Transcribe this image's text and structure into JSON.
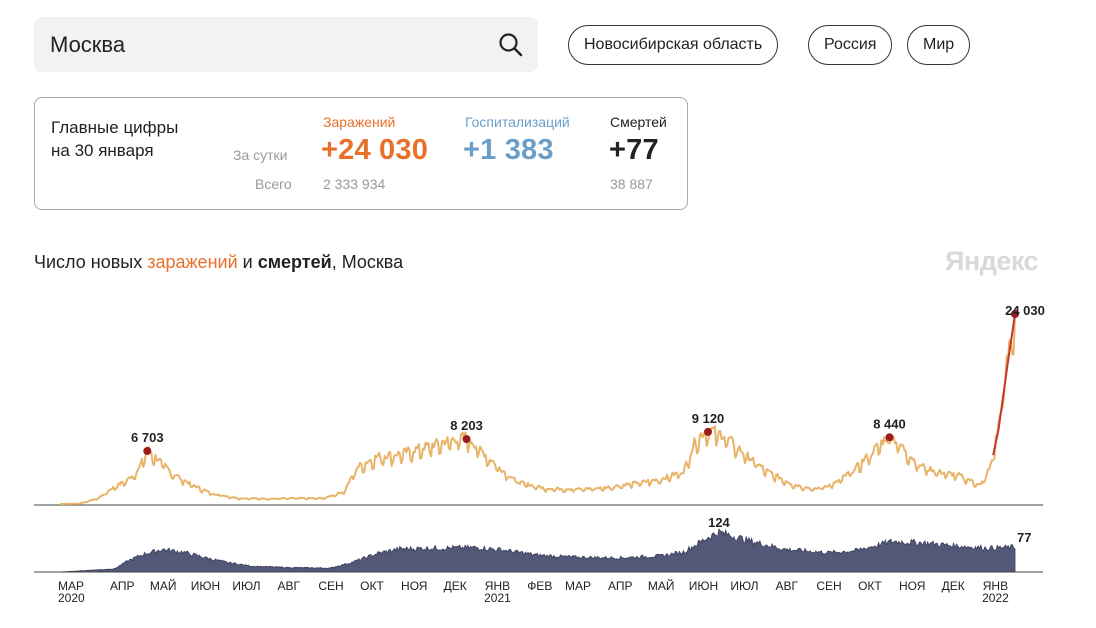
{
  "search": {
    "value": "Москва"
  },
  "regions": [
    "Новосибирская область",
    "Россия",
    "Мир"
  ],
  "card": {
    "title_line1": "Главные цифры",
    "title_line2": "на 30 января",
    "row_day": "За сутки",
    "row_total": "Всего",
    "infections": {
      "label": "Заражений",
      "day": "+24 030",
      "total": "2 333 934",
      "color": "#e8702a"
    },
    "hospitalizations": {
      "label": "Госпитализаций",
      "day": "+1 383",
      "color": "#6b9ec7"
    },
    "deaths": {
      "label": "Смертей",
      "day": "+77",
      "total": "38 887",
      "color": "#222222"
    }
  },
  "chart_title": {
    "prefix": "Число новых ",
    "infections": "заражений",
    "middle": " и ",
    "deaths": "смертей",
    "suffix": ", Москва"
  },
  "brand": "Яндекс",
  "chart_data": [
    {
      "type": "area",
      "series": [
        {
          "name": "заражений",
          "color": "#e8b46a",
          "points": [
            [
              "2020-03-01",
              0
            ],
            [
              "2020-03-15",
              30
            ],
            [
              "2020-03-29",
              700
            ],
            [
              "2020-04-08",
              1900
            ],
            [
              "2020-04-20",
              3000
            ],
            [
              "2020-04-28",
              4300
            ],
            [
              "2020-05-04",
              6703
            ],
            [
              "2020-05-12",
              5400
            ],
            [
              "2020-05-22",
              3800
            ],
            [
              "2020-06-05",
              2400
            ],
            [
              "2020-06-20",
              1300
            ],
            [
              "2020-07-10",
              700
            ],
            [
              "2020-08-01",
              650
            ],
            [
              "2020-08-20",
              700
            ],
            [
              "2020-09-10",
              700
            ],
            [
              "2020-09-25",
              1500
            ],
            [
              "2020-10-05",
              4500
            ],
            [
              "2020-10-20",
              5800
            ],
            [
              "2020-11-05",
              6100
            ],
            [
              "2020-11-25",
              7000
            ],
            [
              "2020-12-08",
              7600
            ],
            [
              "2020-12-24",
              8203
            ],
            [
              "2021-01-08",
              5800
            ],
            [
              "2021-01-20",
              4000
            ],
            [
              "2021-02-01",
              2600
            ],
            [
              "2021-02-20",
              1900
            ],
            [
              "2021-03-15",
              1800
            ],
            [
              "2021-04-05",
              2000
            ],
            [
              "2021-04-25",
              2500
            ],
            [
              "2021-05-15",
              3000
            ],
            [
              "2021-06-01",
              4000
            ],
            [
              "2021-06-10",
              7800
            ],
            [
              "2021-06-19",
              9120
            ],
            [
              "2021-07-01",
              8300
            ],
            [
              "2021-07-15",
              6200
            ],
            [
              "2021-08-01",
              4000
            ],
            [
              "2021-08-20",
              2400
            ],
            [
              "2021-09-05",
              1800
            ],
            [
              "2021-09-20",
              2500
            ],
            [
              "2021-10-05",
              4300
            ],
            [
              "2021-10-20",
              6800
            ],
            [
              "2021-10-30",
              8440
            ],
            [
              "2021-11-08",
              7000
            ],
            [
              "2021-11-20",
              4800
            ],
            [
              "2021-12-05",
              3900
            ],
            [
              "2021-12-20",
              3500
            ],
            [
              "2022-01-05",
              2300
            ],
            [
              "2022-01-12",
              4500
            ],
            [
              "2022-01-18",
              9500
            ],
            [
              "2022-01-24",
              17000
            ],
            [
              "2022-01-30",
              24030
            ]
          ]
        }
      ],
      "annotations": [
        {
          "date": "2020-05-04",
          "label": "6 703"
        },
        {
          "date": "2020-12-24",
          "label": "8 203"
        },
        {
          "date": "2021-06-19",
          "label": "9 120"
        },
        {
          "date": "2021-10-30",
          "label": "8 440"
        },
        {
          "date": "2022-01-30",
          "label": "24 030"
        }
      ]
    },
    {
      "type": "area",
      "series": [
        {
          "name": "смертей",
          "color": "#535778",
          "points": [
            [
              "2020-03-01",
              0
            ],
            [
              "2020-04-10",
              10
            ],
            [
              "2020-04-20",
              35
            ],
            [
              "2020-05-01",
              55
            ],
            [
              "2020-05-15",
              70
            ],
            [
              "2020-05-30",
              62
            ],
            [
              "2020-06-15",
              45
            ],
            [
              "2020-07-01",
              30
            ],
            [
              "2020-07-20",
              18
            ],
            [
              "2020-08-15",
              14
            ],
            [
              "2020-09-15",
              12
            ],
            [
              "2020-10-01",
              30
            ],
            [
              "2020-10-20",
              58
            ],
            [
              "2020-11-05",
              72
            ],
            [
              "2020-12-01",
              74
            ],
            [
              "2021-01-01",
              76
            ],
            [
              "2021-01-20",
              68
            ],
            [
              "2021-02-15",
              52
            ],
            [
              "2021-03-15",
              46
            ],
            [
              "2021-04-15",
              44
            ],
            [
              "2021-05-15",
              50
            ],
            [
              "2021-06-01",
              62
            ],
            [
              "2021-06-20",
              110
            ],
            [
              "2021-06-27",
              124
            ],
            [
              "2021-07-20",
              96
            ],
            [
              "2021-08-15",
              70
            ],
            [
              "2021-09-15",
              60
            ],
            [
              "2021-10-05",
              66
            ],
            [
              "2021-11-01",
              95
            ],
            [
              "2021-11-25",
              90
            ],
            [
              "2021-12-15",
              82
            ],
            [
              "2022-01-10",
              74
            ],
            [
              "2022-01-30",
              77
            ]
          ]
        }
      ],
      "annotations": [
        {
          "date": "2021-06-27",
          "label": "124"
        },
        {
          "date": "2022-01-30",
          "label": "77"
        }
      ]
    }
  ],
  "x_axis": {
    "ticks": [
      {
        "date": "2020-03-01",
        "label": "МАР",
        "year": "2020"
      },
      {
        "date": "2020-04-01",
        "label": "АПР"
      },
      {
        "date": "2020-05-01",
        "label": "МАЙ"
      },
      {
        "date": "2020-06-01",
        "label": "ИЮН"
      },
      {
        "date": "2020-07-01",
        "label": "ИЮЛ"
      },
      {
        "date": "2020-08-01",
        "label": "АВГ"
      },
      {
        "date": "2020-09-01",
        "label": "СЕН"
      },
      {
        "date": "2020-10-01",
        "label": "ОКТ"
      },
      {
        "date": "2020-11-01",
        "label": "НОЯ"
      },
      {
        "date": "2020-12-01",
        "label": "ДЕК"
      },
      {
        "date": "2021-01-01",
        "label": "ЯНВ",
        "year": "2021"
      },
      {
        "date": "2021-02-01",
        "label": "ФЕВ"
      },
      {
        "date": "2021-03-01",
        "label": "МАР"
      },
      {
        "date": "2021-04-01",
        "label": "АПР"
      },
      {
        "date": "2021-05-01",
        "label": "МАЙ"
      },
      {
        "date": "2021-06-01",
        "label": "ИЮН"
      },
      {
        "date": "2021-07-01",
        "label": "ИЮЛ"
      },
      {
        "date": "2021-08-01",
        "label": "АВГ"
      },
      {
        "date": "2021-09-01",
        "label": "СЕН"
      },
      {
        "date": "2021-10-01",
        "label": "ОКТ"
      },
      {
        "date": "2021-11-01",
        "label": "НОЯ"
      },
      {
        "date": "2021-12-01",
        "label": "ДЕК"
      },
      {
        "date": "2022-01-01",
        "label": "ЯНВ",
        "year": "2022"
      }
    ]
  }
}
